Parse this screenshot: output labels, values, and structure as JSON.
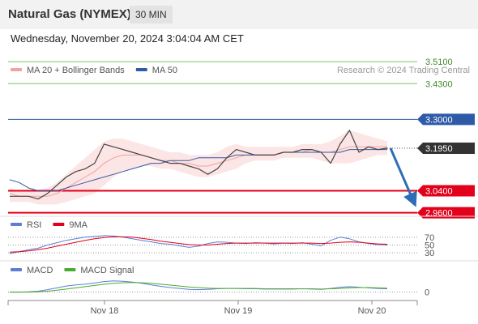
{
  "header": {
    "title": "Natural Gas (NYMEX)",
    "timeframe": "30 MIN",
    "datetime": "Wednesday, November 20, 2024 3:04:04 AM CET"
  },
  "colors": {
    "bollinger": "#f4a0a0",
    "ma50": "#2f5aa8",
    "resistance": "#7fc06a",
    "pivot": "#2f5aa8",
    "support": "#e2001a",
    "arrow": "#2f6db5",
    "rsi": "#5b7fd6",
    "rsi_ma": "#e2001a",
    "macd": "#5b7fd6",
    "macd_signal": "#4caa2e"
  },
  "chart_data": [
    {
      "type": "line",
      "panel": "price",
      "legend": [
        {
          "name": "MA 20 + Bollinger Bands",
          "color": "#f4a0a0"
        },
        {
          "name": "MA 50",
          "color": "#2f5aa8"
        }
      ],
      "watermark": "Research © 2024 Trading Central",
      "x_ticks": [
        "Nov 18",
        "Nov 19",
        "Nov 20"
      ],
      "ylim": [
        2.95,
        3.54
      ],
      "levels": [
        {
          "value": 3.51,
          "label": "3.5100",
          "kind": "resistance"
        },
        {
          "value": 3.43,
          "label": "3.4300",
          "kind": "resistance"
        },
        {
          "value": 3.3,
          "label": "3.3000",
          "kind": "pivot"
        },
        {
          "value": 3.04,
          "label": "3.0400",
          "kind": "support"
        },
        {
          "value": 2.96,
          "label": "2.9600",
          "kind": "support"
        }
      ],
      "last_price": {
        "value": 3.195,
        "label": "3.1950"
      },
      "price": [
        3.02,
        3.02,
        3.02,
        3.01,
        3.03,
        3.06,
        3.09,
        3.11,
        3.12,
        3.14,
        3.21,
        3.2,
        3.19,
        3.18,
        3.17,
        3.16,
        3.15,
        3.14,
        3.14,
        3.13,
        3.12,
        3.1,
        3.12,
        3.16,
        3.19,
        3.18,
        3.17,
        3.17,
        3.17,
        3.18,
        3.18,
        3.19,
        3.19,
        3.18,
        3.14,
        3.21,
        3.26,
        3.18,
        3.2,
        3.19,
        3.195
      ],
      "ma20": [
        3.03,
        3.02,
        3.02,
        3.02,
        3.02,
        3.03,
        3.05,
        3.07,
        3.09,
        3.11,
        3.14,
        3.16,
        3.17,
        3.17,
        3.17,
        3.16,
        3.15,
        3.15,
        3.14,
        3.14,
        3.13,
        3.13,
        3.14,
        3.15,
        3.16,
        3.17,
        3.17,
        3.17,
        3.17,
        3.18,
        3.18,
        3.18,
        3.19,
        3.18,
        3.18,
        3.19,
        3.2,
        3.2,
        3.2,
        3.2,
        3.2
      ],
      "bb_upper": [
        3.05,
        3.04,
        3.04,
        3.04,
        3.05,
        3.07,
        3.1,
        3.13,
        3.16,
        3.19,
        3.22,
        3.23,
        3.23,
        3.22,
        3.21,
        3.2,
        3.19,
        3.18,
        3.18,
        3.17,
        3.17,
        3.17,
        3.18,
        3.2,
        3.21,
        3.2,
        3.2,
        3.2,
        3.2,
        3.2,
        3.2,
        3.21,
        3.21,
        3.21,
        3.22,
        3.24,
        3.26,
        3.25,
        3.24,
        3.23,
        3.22
      ],
      "bb_lower": [
        3.0,
        3.0,
        3.0,
        2.99,
        2.99,
        2.99,
        3.0,
        3.01,
        3.02,
        3.03,
        3.06,
        3.09,
        3.11,
        3.12,
        3.13,
        3.13,
        3.12,
        3.12,
        3.11,
        3.1,
        3.09,
        3.09,
        3.1,
        3.11,
        3.12,
        3.14,
        3.15,
        3.15,
        3.15,
        3.16,
        3.16,
        3.16,
        3.16,
        3.15,
        3.14,
        3.14,
        3.14,
        3.15,
        3.16,
        3.17,
        3.17
      ],
      "ma50": [
        3.08,
        3.07,
        3.05,
        3.04,
        3.04,
        3.04,
        3.05,
        3.06,
        3.07,
        3.08,
        3.09,
        3.1,
        3.11,
        3.12,
        3.13,
        3.14,
        3.14,
        3.15,
        3.15,
        3.15,
        3.16,
        3.16,
        3.16,
        3.16,
        3.17,
        3.17,
        3.17,
        3.17,
        3.17,
        3.18,
        3.18,
        3.18,
        3.18,
        3.18,
        3.18,
        3.18,
        3.19,
        3.19,
        3.19,
        3.19,
        3.19
      ],
      "forecast_arrow": {
        "from": 3.195,
        "to": 3.04
      }
    },
    {
      "type": "line",
      "panel": "rsi",
      "legend": [
        {
          "name": "RSI",
          "color": "#5b7fd6"
        },
        {
          "name": "9MA",
          "color": "#e2001a"
        }
      ],
      "y_ticks": [
        "70",
        "50",
        "30"
      ],
      "ylim": [
        20,
        80
      ],
      "rsi": [
        28,
        33,
        38,
        42,
        50,
        56,
        62,
        66,
        70,
        72,
        74,
        73,
        70,
        66,
        62,
        58,
        54,
        52,
        48,
        44,
        47,
        54,
        58,
        57,
        55,
        54,
        56,
        55,
        53,
        55,
        54,
        56,
        52,
        48,
        62,
        70,
        66,
        58,
        54,
        51,
        50
      ],
      "rsi_ma": [
        32,
        33,
        35,
        38,
        42,
        47,
        52,
        57,
        62,
        66,
        69,
        71,
        71,
        70,
        67,
        64,
        60,
        57,
        54,
        51,
        50,
        50,
        52,
        54,
        55,
        55,
        55,
        55,
        55,
        55,
        55,
        55,
        55,
        54,
        55,
        57,
        58,
        57,
        55,
        53,
        52
      ]
    },
    {
      "type": "line",
      "panel": "macd",
      "legend": [
        {
          "name": "MACD",
          "color": "#5b7fd6"
        },
        {
          "name": "MACD Signal",
          "color": "#4caa2e"
        }
      ],
      "y_ticks": [
        "0"
      ],
      "ylim": [
        -0.02,
        0.05
      ],
      "macd": [
        0.0,
        0.0,
        0.001,
        0.003,
        0.008,
        0.014,
        0.02,
        0.024,
        0.026,
        0.03,
        0.035,
        0.037,
        0.036,
        0.033,
        0.029,
        0.024,
        0.019,
        0.015,
        0.012,
        0.009,
        0.008,
        0.009,
        0.011,
        0.012,
        0.012,
        0.011,
        0.011,
        0.01,
        0.01,
        0.01,
        0.01,
        0.011,
        0.01,
        0.009,
        0.012,
        0.016,
        0.018,
        0.016,
        0.014,
        0.012,
        0.011
      ],
      "macd_signal": [
        0.0,
        0.0,
        0.0,
        0.001,
        0.003,
        0.006,
        0.01,
        0.014,
        0.018,
        0.022,
        0.026,
        0.029,
        0.031,
        0.032,
        0.031,
        0.029,
        0.026,
        0.023,
        0.02,
        0.017,
        0.015,
        0.013,
        0.012,
        0.012,
        0.012,
        0.012,
        0.012,
        0.011,
        0.011,
        0.011,
        0.011,
        0.011,
        0.011,
        0.01,
        0.011,
        0.012,
        0.014,
        0.015,
        0.015,
        0.014,
        0.013
      ]
    }
  ]
}
